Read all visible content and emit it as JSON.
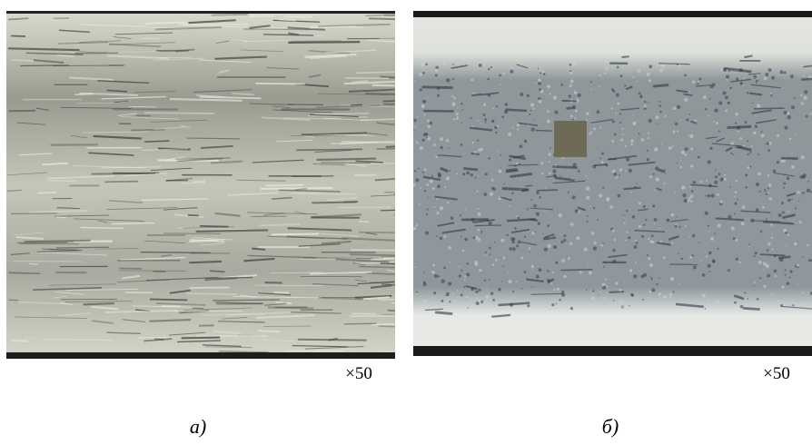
{
  "panels": [
    {
      "magnification": "×50",
      "label": "а)"
    },
    {
      "magnification": "×50",
      "label": "б)"
    }
  ]
}
